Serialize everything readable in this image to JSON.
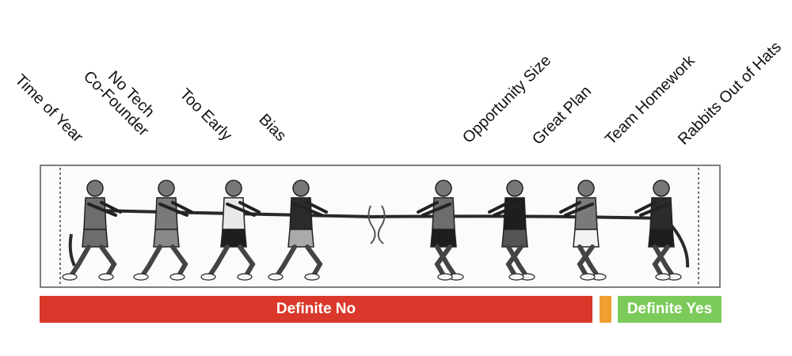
{
  "labels": {
    "time_of_year": "Time of Year",
    "no_tech_line1": "No Tech",
    "no_tech_line2": "Co-Founder",
    "too_early": "Too Early",
    "bias": "Bias",
    "opportunity_size": "Opportunity Size",
    "great_plan": "Great Plan",
    "team_homework": "Team Homework",
    "rabbits": "Rabbits Out of Hats"
  },
  "bars": {
    "no_label": "Definite No",
    "yes_label": "Definite Yes",
    "no_color": "#d9382a",
    "maybe_color": "#f0a030",
    "yes_color": "#7ccb5a"
  },
  "illustration": {
    "figures": [
      "puller",
      "puller",
      "puller",
      "puller",
      "puller",
      "puller",
      "puller",
      "puller"
    ],
    "centre_marker": "knot"
  }
}
